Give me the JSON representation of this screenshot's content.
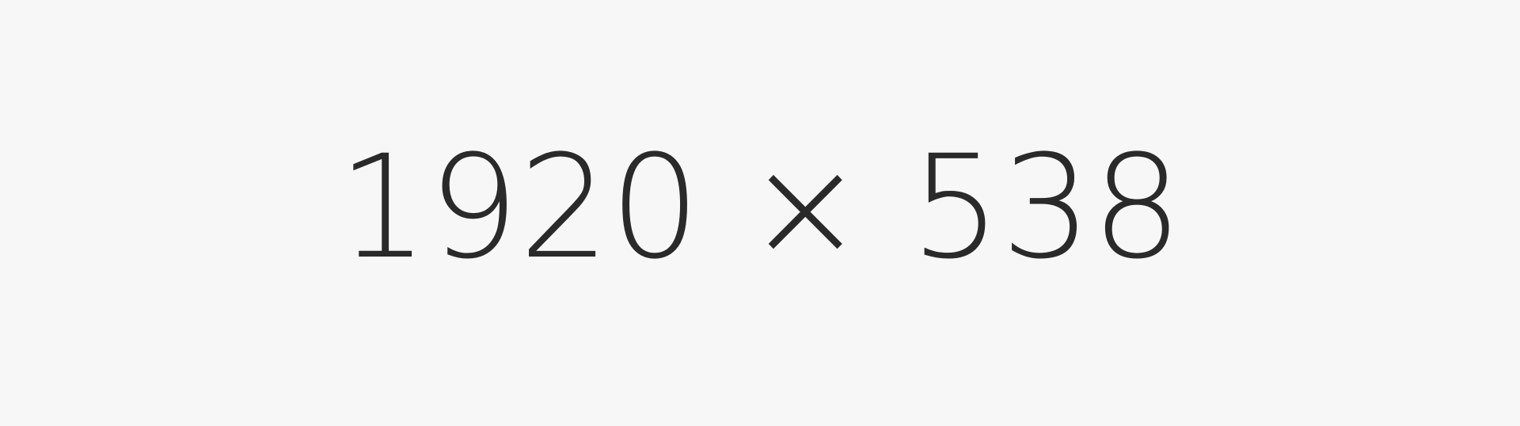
{
  "placeholder": {
    "label": "1920 × 538",
    "background_color": "#f7f7f7",
    "text_color": "#2a2a2a"
  }
}
